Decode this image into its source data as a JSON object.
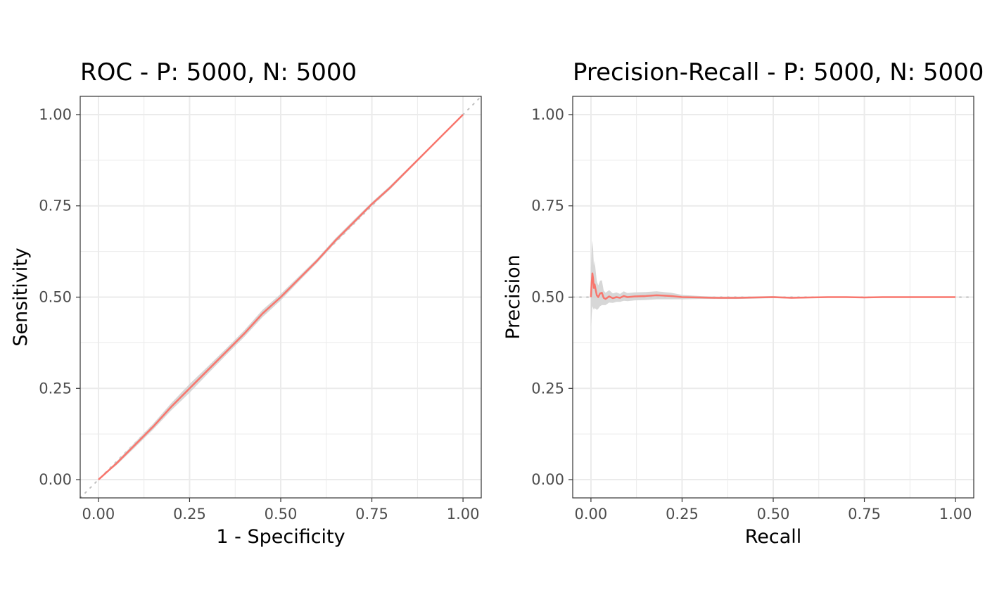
{
  "chart_data": [
    {
      "type": "line",
      "title": "ROC - P: 5000, N: 5000",
      "xlabel": "1 - Specificity",
      "ylabel": "Sensitivity",
      "xlim": [
        -0.05,
        1.05
      ],
      "ylim": [
        -0.05,
        1.05
      ],
      "xticks": [
        "0.00",
        "0.25",
        "0.50",
        "0.75",
        "1.00"
      ],
      "yticks": [
        "0.00",
        "0.25",
        "0.50",
        "0.75",
        "1.00"
      ],
      "grid": true,
      "legend": "none",
      "colors": {
        "curve": "#F8766D",
        "band": "#d3d3d3",
        "reference": "#bebebe"
      },
      "reference_line": {
        "x": [
          -0.05,
          1.05
        ],
        "y": [
          -0.05,
          1.05
        ]
      },
      "series": [
        {
          "x": [
            0,
            0.05,
            0.1,
            0.15,
            0.2,
            0.25,
            0.3,
            0.35,
            0.4,
            0.45,
            0.5,
            0.55,
            0.6,
            0.65,
            0.7,
            0.75,
            0.8,
            0.85,
            0.9,
            0.95,
            1.0
          ],
          "y": [
            0,
            0.045,
            0.095,
            0.145,
            0.2,
            0.25,
            0.3,
            0.35,
            0.4,
            0.455,
            0.5,
            0.55,
            0.6,
            0.655,
            0.705,
            0.755,
            0.8,
            0.85,
            0.9,
            0.95,
            1.0
          ],
          "lower": [
            0,
            0.04,
            0.088,
            0.137,
            0.19,
            0.238,
            0.29,
            0.341,
            0.391,
            0.445,
            0.491,
            0.543,
            0.594,
            0.649,
            0.699,
            0.75,
            0.795,
            0.846,
            0.897,
            0.948,
            1.0
          ],
          "upper": [
            0,
            0.05,
            0.102,
            0.153,
            0.21,
            0.262,
            0.31,
            0.359,
            0.409,
            0.465,
            0.509,
            0.557,
            0.606,
            0.661,
            0.711,
            0.76,
            0.805,
            0.854,
            0.903,
            0.952,
            1.0
          ]
        }
      ]
    },
    {
      "type": "line",
      "title": "Precision-Recall - P: 5000, N: 5000",
      "xlabel": "Recall",
      "ylabel": "Precision",
      "xlim": [
        -0.05,
        1.05
      ],
      "ylim": [
        -0.05,
        1.05
      ],
      "xticks": [
        "0.00",
        "0.25",
        "0.50",
        "0.75",
        "1.00"
      ],
      "yticks": [
        "0.00",
        "0.25",
        "0.50",
        "0.75",
        "1.00"
      ],
      "grid": true,
      "legend": "none",
      "colors": {
        "curve": "#F8766D",
        "band": "#d3d3d3",
        "reference": "#bebebe"
      },
      "reference_line": {
        "x": [
          -0.05,
          1.05
        ],
        "y": [
          0.5,
          0.5
        ]
      },
      "series": [
        {
          "x": [
            0,
            0.002,
            0.004,
            0.006,
            0.008,
            0.01,
            0.013,
            0.016,
            0.02,
            0.025,
            0.03,
            0.035,
            0.04,
            0.05,
            0.06,
            0.07,
            0.08,
            0.09,
            0.1,
            0.12,
            0.15,
            0.18,
            0.2,
            0.22,
            0.25,
            0.3,
            0.35,
            0.4,
            0.45,
            0.5,
            0.55,
            0.6,
            0.65,
            0.7,
            0.75,
            0.8,
            0.85,
            0.9,
            0.95,
            1.0
          ],
          "y": [
            0.5,
            0.54,
            0.565,
            0.55,
            0.525,
            0.535,
            0.52,
            0.505,
            0.5,
            0.51,
            0.512,
            0.498,
            0.495,
            0.502,
            0.497,
            0.5,
            0.498,
            0.503,
            0.5,
            0.502,
            0.503,
            0.505,
            0.504,
            0.503,
            0.5,
            0.499,
            0.498,
            0.498,
            0.499,
            0.5,
            0.498,
            0.499,
            0.5,
            0.5,
            0.499,
            0.5,
            0.5,
            0.5,
            0.5,
            0.5
          ],
          "lower": [
            0.42,
            0.45,
            0.475,
            0.47,
            0.465,
            0.47,
            0.468,
            0.465,
            0.468,
            0.475,
            0.478,
            0.478,
            0.478,
            0.485,
            0.484,
            0.487,
            0.487,
            0.49,
            0.489,
            0.491,
            0.492,
            0.494,
            0.494,
            0.494,
            0.494,
            0.495,
            0.495,
            0.495,
            0.496,
            0.497,
            0.496,
            0.497,
            0.498,
            0.498,
            0.498,
            0.499,
            0.499,
            0.499,
            0.5,
            0.5
          ],
          "upper": [
            0.58,
            0.63,
            0.655,
            0.63,
            0.585,
            0.6,
            0.572,
            0.545,
            0.532,
            0.545,
            0.546,
            0.518,
            0.512,
            0.519,
            0.51,
            0.513,
            0.509,
            0.516,
            0.511,
            0.513,
            0.514,
            0.516,
            0.514,
            0.512,
            0.506,
            0.503,
            0.501,
            0.501,
            0.502,
            0.503,
            0.5,
            0.501,
            0.502,
            0.502,
            0.5,
            0.501,
            0.501,
            0.501,
            0.5,
            0.5
          ]
        }
      ]
    }
  ]
}
